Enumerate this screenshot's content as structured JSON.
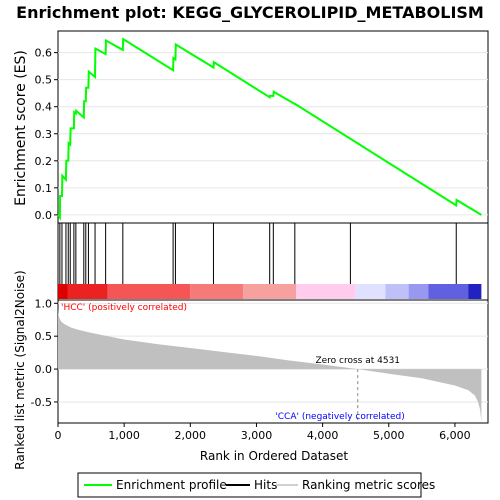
{
  "title": "Enrichment plot: KEGG_GLYCEROLIPID_METABOLISM",
  "chart_data": [
    {
      "type": "line",
      "panel": "enrichment",
      "ylabel": "Enrichment score (ES)",
      "xlim": [
        0,
        6500
      ],
      "ylim": [
        -0.03,
        0.68
      ],
      "yticks": [
        "0.0",
        "0.1",
        "0.2",
        "0.3",
        "0.4",
        "0.5",
        "0.6"
      ],
      "ytick_values": [
        0.0,
        0.1,
        0.2,
        0.3,
        0.4,
        0.5,
        0.6
      ],
      "series": [
        {
          "name": "Enrichment profile",
          "color": "#00ff00",
          "x": [
            0,
            28,
            31,
            60,
            65,
            120,
            125,
            155,
            160,
            185,
            190,
            240,
            245,
            270,
            275,
            390,
            395,
            420,
            425,
            460,
            465,
            560,
            565,
            720,
            725,
            980,
            985,
            1740,
            1745,
            1775,
            1780,
            2350,
            2355,
            3200,
            3205,
            3255,
            3260,
            3580,
            3585,
            6020,
            6025,
            6400
          ],
          "y": [
            0.0,
            -0.01,
            0.07,
            0.07,
            0.145,
            0.13,
            0.2,
            0.2,
            0.265,
            0.26,
            0.32,
            0.32,
            0.38,
            0.375,
            0.385,
            0.36,
            0.42,
            0.42,
            0.47,
            0.47,
            0.53,
            0.51,
            0.615,
            0.595,
            0.645,
            0.61,
            0.65,
            0.535,
            0.58,
            0.575,
            0.63,
            0.545,
            0.565,
            0.435,
            0.44,
            0.44,
            0.455,
            0.41,
            0.41,
            0.035,
            0.055,
            0.0
          ]
        }
      ]
    },
    {
      "type": "hits",
      "panel": "hits",
      "series_name": "Hits",
      "hit_positions": [
        28,
        60,
        120,
        155,
        185,
        240,
        270,
        390,
        420,
        460,
        560,
        720,
        980,
        1740,
        1775,
        2350,
        3200,
        3255,
        3580,
        4420,
        6020
      ],
      "heat_bands": [
        {
          "from": 0,
          "to": 150,
          "color": "#dd0000"
        },
        {
          "from": 150,
          "to": 750,
          "color": "#ea2222"
        },
        {
          "from": 750,
          "to": 2000,
          "color": "#f55555"
        },
        {
          "from": 2000,
          "to": 2800,
          "color": "#f57a7a"
        },
        {
          "from": 2800,
          "to": 3600,
          "color": "#f7a0a0"
        },
        {
          "from": 3600,
          "to": 4500,
          "color": "#ffccee"
        },
        {
          "from": 4500,
          "to": 4950,
          "color": "#e0e0ff"
        },
        {
          "from": 4950,
          "to": 5300,
          "color": "#c0c0f8"
        },
        {
          "from": 5300,
          "to": 5600,
          "color": "#9898f0"
        },
        {
          "from": 5600,
          "to": 6200,
          "color": "#6060e0"
        },
        {
          "from": 6200,
          "to": 6400,
          "color": "#2222c0"
        }
      ]
    },
    {
      "type": "area",
      "panel": "ranked_metric",
      "ylabel": "Ranked list metric (Signal2Noise)",
      "xlabel": "Rank in Ordered Dataset",
      "xlim": [
        0,
        6500
      ],
      "ylim": [
        -0.82,
        1.05
      ],
      "yticks": [
        "-0.5",
        "0.0",
        "0.5",
        "1.0"
      ],
      "ytick_values": [
        -0.5,
        0.0,
        0.5,
        1.0
      ],
      "xticks": [
        "0",
        "1,000",
        "2,000",
        "3,000",
        "4,000",
        "5,000",
        "6,000"
      ],
      "xtick_values": [
        0,
        1000,
        2000,
        3000,
        4000,
        5000,
        6000
      ],
      "fill_color": "#c0c0c0",
      "x": [
        0,
        5,
        20,
        50,
        100,
        200,
        300,
        500,
        700,
        1000,
        1500,
        2000,
        2500,
        3000,
        3500,
        4000,
        4531,
        5000,
        5500,
        6000,
        6200,
        6300,
        6350,
        6380,
        6400
      ],
      "y": [
        0.95,
        0.85,
        0.78,
        0.72,
        0.68,
        0.63,
        0.6,
        0.55,
        0.51,
        0.45,
        0.38,
        0.32,
        0.26,
        0.2,
        0.13,
        0.07,
        0.0,
        -0.07,
        -0.14,
        -0.25,
        -0.32,
        -0.4,
        -0.5,
        -0.62,
        -0.8
      ],
      "annotations": {
        "zero_cross_label": "Zero cross at 4531",
        "zero_cross_x": 4531,
        "positive_label": "'HCC' (positively correlated)",
        "positive_color": "#ff0000",
        "negative_label": "'CCA' (negatively correlated)",
        "negative_color": "#0000ff"
      }
    }
  ],
  "legend": {
    "items": [
      {
        "label": "Enrichment profile",
        "color": "#00ff00"
      },
      {
        "label": "Hits",
        "color": "#000000"
      },
      {
        "label": "Ranking metric scores",
        "color": "#c0c0c0"
      }
    ]
  }
}
